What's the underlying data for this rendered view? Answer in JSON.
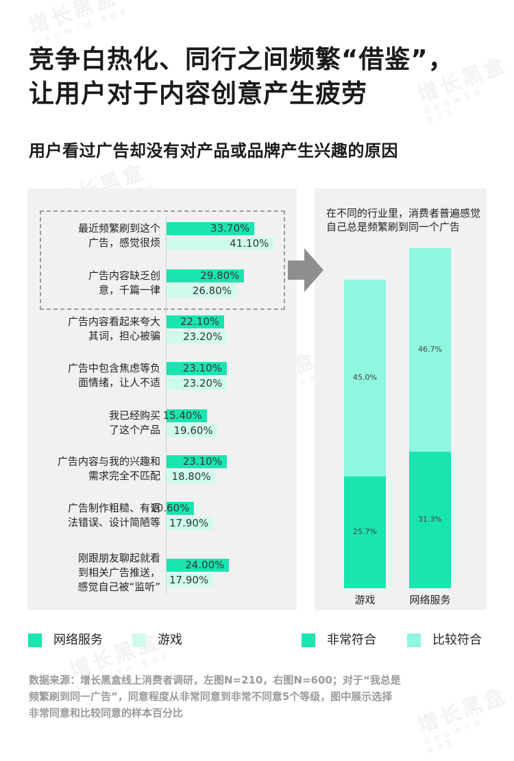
{
  "title_line1": "竞争白热化、同行之间频繁“借鉴”，",
  "title_line2": "让用户对于内容创意产生疲劳",
  "subtitle": "用户看过广告却没有对产品或品牌产生兴趣的原因",
  "watermark": {
    "cn": "增长黑盒",
    "en": "GROWTH BOX"
  },
  "colors": {
    "net": "#19e5b0",
    "game": "#cffbee",
    "strong": "#19e5b0",
    "weak": "#8ff6df",
    "panel": "#f1f1f1"
  },
  "chart_data": [
    {
      "type": "bar",
      "orientation": "horizontal",
      "unit": "%",
      "categories": [
        [
          "最近频繁刷到这个",
          "广告，感觉很烦"
        ],
        [
          "广告内容缺乏创",
          "意，千篇一律"
        ],
        [
          "广告内容看起来夸大",
          "其词，担心被骗"
        ],
        [
          "广告中包含焦虑等负",
          "面情绪，让人不适"
        ],
        [
          "我已经购买",
          "了这个产品"
        ],
        [
          "广告内容与我的兴趣和",
          "需求完全不匹配"
        ],
        [
          "广告制作粗糙、有语",
          "法错误、设计简陋等"
        ],
        [
          "刚跟朋友聊起就看",
          "到相关广告推送，",
          "感觉自己被“监听”"
        ]
      ],
      "series": [
        {
          "name": "网络服务",
          "values": [
            33.7,
            29.8,
            22.1,
            23.1,
            15.4,
            23.1,
            10.6,
            24.0
          ],
          "labels": [
            "33.70%",
            "29.80%",
            "22.10%",
            "23.10%",
            "15.40%",
            "23.10%",
            "10.60%",
            "24.00%"
          ]
        },
        {
          "name": "游戏",
          "values": [
            41.1,
            26.8,
            23.2,
            23.2,
            19.6,
            18.8,
            17.9,
            17.9
          ],
          "labels": [
            "41.10%",
            "26.80%",
            "23.20%",
            "23.20%",
            "19.60%",
            "18.80%",
            "17.90%",
            "17.90%"
          ]
        }
      ],
      "highlighted": [
        0,
        1
      ],
      "legend_position": "bottom-left"
    },
    {
      "type": "bar",
      "stacked": true,
      "title": "在不同的行业里，消费者普遍感觉自己总是频繁刷到同一个广告",
      "categories": [
        "游戏",
        "网络服务"
      ],
      "series": [
        {
          "name": "非常符合",
          "values": [
            25.7,
            31.3
          ],
          "labels": [
            "25.7%",
            "31.3%"
          ]
        },
        {
          "name": "比较符合",
          "values": [
            45.0,
            46.7
          ],
          "labels": [
            "45.0%",
            "46.7%"
          ]
        }
      ],
      "legend_position": "bottom-right"
    }
  ],
  "legend": {
    "net": "网络服务",
    "game": "游戏",
    "strong": "非常符合",
    "weak": "比较符合"
  },
  "source_lines": [
    "数据来源：增长黑盒线上消费者调研，左图N=210，右图N=600；对于“我总是",
    "频繁刷到同一广告”，同意程度从非常同意到非常不同意5个等级，图中展示选择",
    "非常同意和比较同意的样本百分比"
  ]
}
